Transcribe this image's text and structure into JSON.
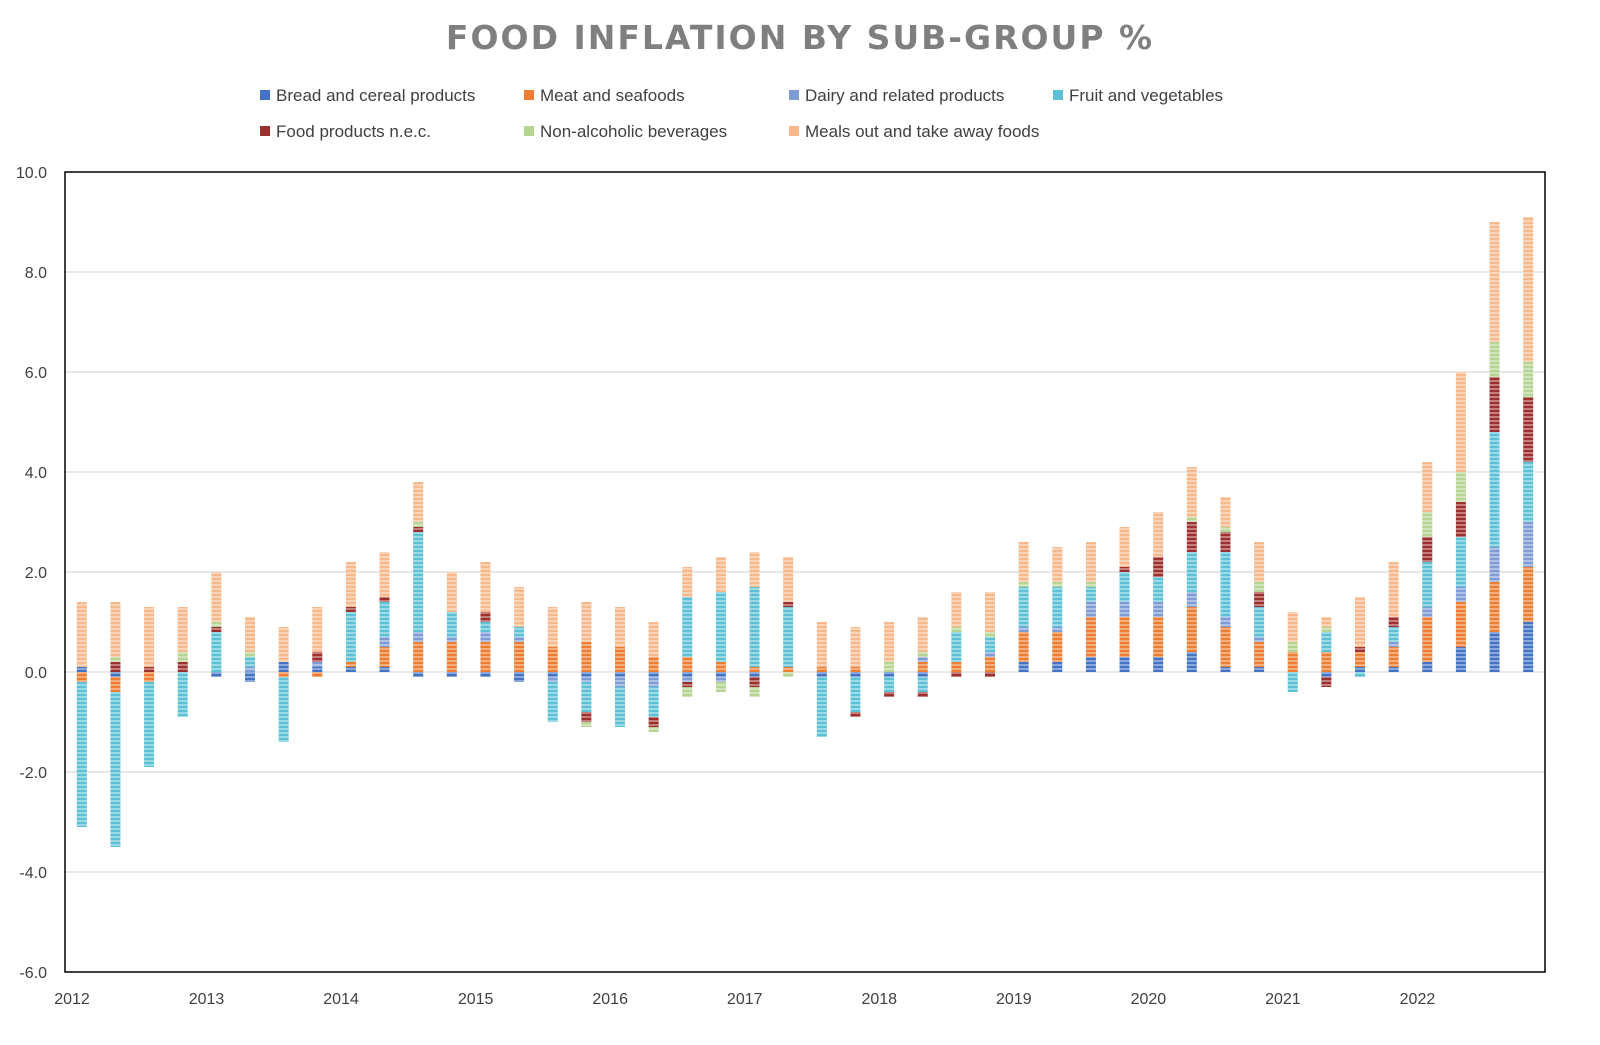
{
  "colors": {
    "bread": "#4472c4",
    "meat": "#ed7d31",
    "dairy": "#7e9bd4",
    "fruit": "#5dc1d6",
    "food_nec": "#9e2f2f",
    "beverages": "#b5d491",
    "meals": "#f7b98c",
    "grid": "#d9d9d9",
    "axis": "#000000"
  },
  "chart_data": {
    "type": "bar",
    "stacked": true,
    "title": "FOOD INFLATION BY SUB-GROUP %",
    "xlabel": "",
    "ylabel": "",
    "ylim": [
      -6,
      10
    ],
    "yticks": [
      "10.0",
      "8.0",
      "6.0",
      "4.0",
      "2.0",
      "0.0",
      "-2.0",
      "-4.0",
      "-6.0"
    ],
    "ytick_values": [
      10,
      8,
      6,
      4,
      2,
      0,
      -2,
      -4,
      -6
    ],
    "xtick_labels": [
      "2012",
      "2013",
      "2014",
      "2015",
      "2016",
      "2017",
      "2018",
      "2019",
      "2020",
      "2021",
      "2022"
    ],
    "xtick_positions": [
      0,
      4,
      8,
      12,
      16,
      20,
      24,
      28,
      32,
      36,
      40
    ],
    "grid": true,
    "legend_position": "top",
    "x": [
      "2012 Q1",
      "2012 Q2",
      "2012 Q3",
      "2012 Q4",
      "2013 Q1",
      "2013 Q2",
      "2013 Q3",
      "2013 Q4",
      "2014 Q1",
      "2014 Q2",
      "2014 Q3",
      "2014 Q4",
      "2015 Q1",
      "2015 Q2",
      "2015 Q3",
      "2015 Q4",
      "2016 Q1",
      "2016 Q2",
      "2016 Q3",
      "2016 Q4",
      "2017 Q1",
      "2017 Q2",
      "2017 Q3",
      "2017 Q4",
      "2018 Q1",
      "2018 Q2",
      "2018 Q3",
      "2018 Q4",
      "2019 Q1",
      "2019 Q2",
      "2019 Q3",
      "2019 Q4",
      "2020 Q1",
      "2020 Q2",
      "2020 Q3",
      "2020 Q4",
      "2021 Q1",
      "2021 Q2",
      "2021 Q3",
      "2021 Q4",
      "2022 Q1",
      "2022 Q2",
      "2022 Q3",
      "2022 Q4"
    ],
    "series": [
      {
        "name": "Bread and cereal products",
        "key": "bread",
        "values": [
          0.1,
          -0.1,
          0,
          0,
          -0.1,
          -0.2,
          0.2,
          0.1,
          0.1,
          0.1,
          -0.1,
          -0.1,
          -0.1,
          -0.2,
          -0.1,
          -0.1,
          -0.1,
          -0.1,
          -0.1,
          -0.1,
          -0.1,
          0,
          -0.1,
          -0.1,
          -0.1,
          -0.1,
          0,
          0,
          0.2,
          0.2,
          0.3,
          0.3,
          0.3,
          0.4,
          0.1,
          0.1,
          0,
          -0.1,
          0.1,
          0.1,
          0.2,
          0.5,
          0.8,
          1.0
        ]
      },
      {
        "name": "Meat and seafoods",
        "key": "meat",
        "values": [
          -0.2,
          -0.3,
          -0.2,
          0,
          0,
          0,
          -0.1,
          -0.1,
          0.1,
          0.4,
          0.6,
          0.6,
          0.6,
          0.6,
          0.5,
          0.6,
          0.5,
          0.3,
          0.3,
          0.2,
          0.1,
          0.1,
          0.1,
          0.1,
          0,
          0.2,
          0.2,
          0.3,
          0.6,
          0.6,
          0.8,
          0.8,
          0.8,
          0.9,
          0.8,
          0.5,
          0.4,
          0.4,
          0.3,
          0.4,
          0.9,
          0.9,
          1.0,
          1.1
        ]
      },
      {
        "name": "Dairy and related products",
        "key": "dairy",
        "values": [
          0,
          0,
          0,
          0,
          0,
          0.1,
          0,
          0.1,
          0,
          0.2,
          0.2,
          0.1,
          0.2,
          0.1,
          -0.1,
          -0.1,
          -0.2,
          -0.2,
          -0.1,
          -0.1,
          0,
          0,
          0,
          0,
          0,
          0.1,
          0,
          0.1,
          0.1,
          0.1,
          0.3,
          0.3,
          0.3,
          0.3,
          0.2,
          0.1,
          0,
          0,
          0,
          0.1,
          0.2,
          0.3,
          0.7,
          0.9
        ]
      },
      {
        "name": "Fruit and vegetables",
        "key": "fruit",
        "values": [
          -2.9,
          -3.1,
          -1.7,
          -0.9,
          0.8,
          0.2,
          -1.3,
          0,
          1.0,
          0.7,
          2.0,
          0.5,
          0.2,
          0.2,
          -0.8,
          -0.6,
          -0.8,
          -0.6,
          1.2,
          1.4,
          1.6,
          1.2,
          -1.2,
          -0.7,
          -0.3,
          -0.3,
          0.6,
          0.3,
          0.8,
          0.8,
          0.3,
          0.6,
          0.5,
          0.8,
          1.3,
          0.6,
          -0.4,
          0.4,
          -0.1,
          0.3,
          0.9,
          1.0,
          2.3,
          1.2
        ]
      },
      {
        "name": "Food products n.e.c.",
        "key": "food_nec",
        "values": [
          0,
          0.2,
          0.1,
          0.2,
          0.1,
          0,
          0,
          0.2,
          0.1,
          0.1,
          0.1,
          0,
          0.2,
          0,
          0,
          -0.2,
          0,
          -0.2,
          -0.1,
          0,
          -0.2,
          0.1,
          0,
          -0.1,
          -0.1,
          -0.1,
          -0.1,
          -0.1,
          0,
          0,
          0,
          0.1,
          0.4,
          0.6,
          0.4,
          0.3,
          0,
          -0.2,
          0.1,
          0.2,
          0.5,
          0.7,
          1.1,
          1.3
        ]
      },
      {
        "name": "Non-alcoholic beverages",
        "key": "beverages",
        "values": [
          0,
          0.1,
          0,
          0.2,
          0.1,
          0.1,
          0,
          0,
          0,
          0,
          0.1,
          0,
          0,
          0,
          0,
          -0.1,
          0,
          -0.1,
          -0.2,
          -0.2,
          -0.2,
          -0.1,
          0,
          0,
          0.2,
          0.1,
          0.1,
          0.1,
          0.1,
          0.1,
          0.1,
          0,
          0,
          0.1,
          0.1,
          0.2,
          0.2,
          0.1,
          0,
          0,
          0.5,
          0.6,
          0.7,
          0.7
        ]
      },
      {
        "name": "Meals out and take away foods",
        "key": "meals",
        "values": [
          1.3,
          1.1,
          1.2,
          0.9,
          1.0,
          0.7,
          0.7,
          0.9,
          0.9,
          0.9,
          0.8,
          0.8,
          1.0,
          0.8,
          0.8,
          0.8,
          0.8,
          0.7,
          0.6,
          0.7,
          0.7,
          0.9,
          0.9,
          0.8,
          0.8,
          0.7,
          0.7,
          0.8,
          0.8,
          0.7,
          0.8,
          0.8,
          0.9,
          1.0,
          0.6,
          0.8,
          0.6,
          0.2,
          1.0,
          1.1,
          1.0,
          2.0,
          2.4,
          2.9
        ]
      }
    ]
  }
}
